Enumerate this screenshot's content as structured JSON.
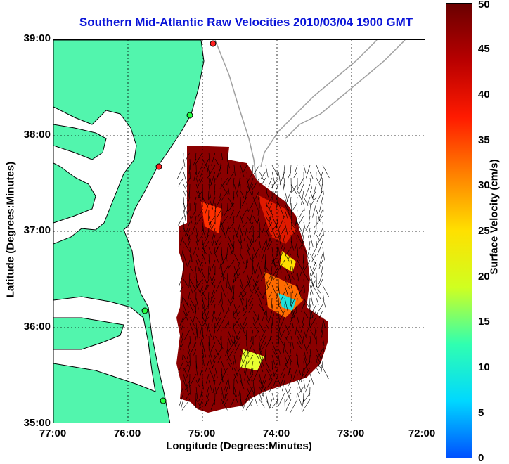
{
  "title": "Southern Mid-Atlantic Raw Velocities 2010/03/04 1900 GMT",
  "axes": {
    "xlabel": "Longitude (Degrees:Minutes)",
    "ylabel": "Latitude (Degrees:Minutes)",
    "xticks": [
      "77:00",
      "76:00",
      "75:00",
      "74:00",
      "73:00",
      "72:00"
    ],
    "yticks": [
      "39:00",
      "38:00",
      "37:00",
      "36:00",
      "35:00"
    ]
  },
  "colorbar": {
    "label": "Surface Velocity (cm/s)",
    "ticks": [
      "50",
      "45",
      "40",
      "35",
      "30",
      "25",
      "20",
      "15",
      "10",
      "5",
      "0"
    ],
    "range": [
      0,
      50
    ],
    "colors": [
      "#0050ff",
      "#00d8ff",
      "#30ffb0",
      "#d0ff20",
      "#ffe000",
      "#ff8000",
      "#ff1a00",
      "#b80000",
      "#6a0000"
    ]
  },
  "colors": {
    "land": "#52f5ad",
    "coast": "#000000",
    "bathymetry": "#a0a0a0",
    "title": "#0a14d8"
  }
}
